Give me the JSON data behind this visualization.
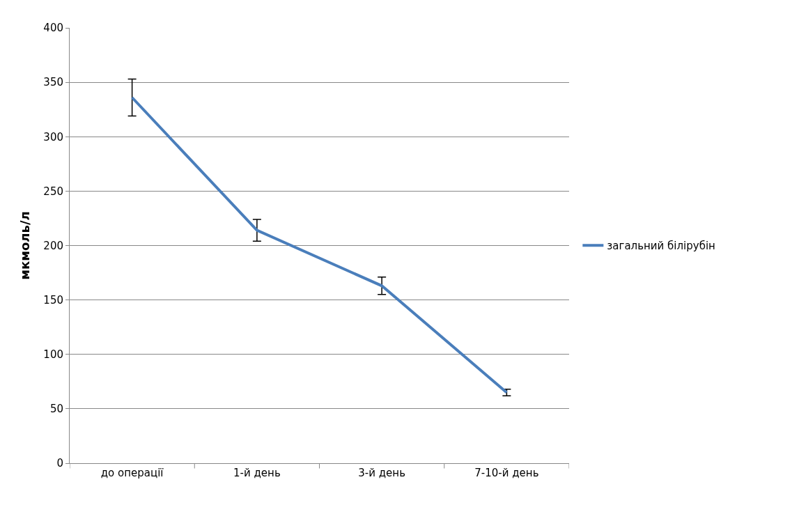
{
  "chart_data": {
    "type": "line",
    "ylabel": "мкмоль/л",
    "categories": [
      "до операції",
      "1-й день",
      "3-й день",
      "7-10-й день"
    ],
    "series": [
      {
        "name": "загальний білірубін",
        "color": "#4a7ebb",
        "values": [
          336,
          214,
          163,
          65
        ],
        "errors": [
          17,
          10,
          8,
          3
        ]
      }
    ],
    "ylim": [
      0,
      400
    ],
    "yticks": [
      0,
      50,
      100,
      150,
      200,
      250,
      300,
      350,
      400
    ],
    "grid": "y",
    "legend": "right",
    "marker": "none",
    "line_style": "solid"
  }
}
